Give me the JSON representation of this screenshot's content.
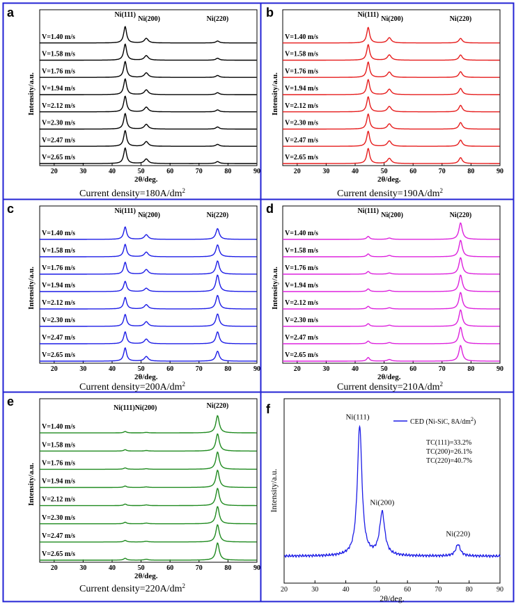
{
  "figure": {
    "border_color": "#2323d4"
  },
  "common": {
    "x_ticks": [
      20,
      30,
      40,
      50,
      60,
      70,
      80,
      90
    ],
    "x_range": [
      15,
      90
    ],
    "xlabel": "2θ/deg.",
    "ylabel": "Intensity/a.u.",
    "speeds": [
      "V=1.40 m/s",
      "V=1.58 m/s",
      "V=1.76 m/s",
      "V=1.94 m/s",
      "V=2.12 m/s",
      "V=2.30 m/s",
      "V=2.47 m/s",
      "V=2.65 m/s"
    ],
    "peak_positions": [
      44.5,
      51.8,
      76.4
    ]
  },
  "chart_data": [
    {
      "type": "line",
      "panel": "a",
      "color": "#000000",
      "title": "Current density=180A/dm²",
      "caption_prefix": "Current density=180A/dm",
      "caption_sup": "2",
      "peak_labels": [
        "Ni(111)",
        "Ni(200)",
        "Ni(220)"
      ],
      "series": [
        {
          "name": "V=1.40 m/s",
          "peak_heights": [
            1.0,
            0.28,
            0.12
          ]
        },
        {
          "name": "V=1.58 m/s",
          "peak_heights": [
            0.98,
            0.28,
            0.12
          ]
        },
        {
          "name": "V=1.76 m/s",
          "peak_heights": [
            0.97,
            0.28,
            0.12
          ]
        },
        {
          "name": "V=1.94 m/s",
          "peak_heights": [
            0.96,
            0.29,
            0.12
          ]
        },
        {
          "name": "V=2.12 m/s",
          "peak_heights": [
            0.96,
            0.29,
            0.12
          ]
        },
        {
          "name": "V=2.30 m/s",
          "peak_heights": [
            0.95,
            0.29,
            0.13
          ]
        },
        {
          "name": "V=2.47 m/s",
          "peak_heights": [
            0.96,
            0.29,
            0.12
          ]
        },
        {
          "name": "V=2.65 m/s",
          "peak_heights": [
            0.95,
            0.28,
            0.12
          ]
        }
      ]
    },
    {
      "type": "line",
      "panel": "b",
      "color": "#e61c1c",
      "title": "Current density=190A/dm²",
      "caption_prefix": "Current density=190A/dm",
      "caption_sup": "2",
      "peak_labels": [
        "Ni(111)",
        "Ni(200)",
        "Ni(220)"
      ],
      "series": [
        {
          "name": "V=1.40 m/s",
          "peak_heights": [
            0.95,
            0.32,
            0.28
          ]
        },
        {
          "name": "V=1.58 m/s",
          "peak_heights": [
            0.95,
            0.32,
            0.32
          ]
        },
        {
          "name": "V=1.76 m/s",
          "peak_heights": [
            0.94,
            0.33,
            0.35
          ]
        },
        {
          "name": "V=1.94 m/s",
          "peak_heights": [
            0.92,
            0.33,
            0.38
          ]
        },
        {
          "name": "V=2.12 m/s",
          "peak_heights": [
            0.92,
            0.33,
            0.4
          ]
        },
        {
          "name": "V=2.30 m/s",
          "peak_heights": [
            0.92,
            0.32,
            0.4
          ]
        },
        {
          "name": "V=2.47 m/s",
          "peak_heights": [
            0.92,
            0.33,
            0.38
          ]
        },
        {
          "name": "V=2.65 m/s",
          "peak_heights": [
            0.92,
            0.32,
            0.36
          ]
        }
      ]
    },
    {
      "type": "line",
      "panel": "c",
      "color": "#1c1ce6",
      "title": "Current density=200A/dm²",
      "caption_prefix": "Current density=200A/dm",
      "caption_sup": "2",
      "peak_labels": [
        "Ni(111)",
        "Ni(200)",
        "Ni(220)"
      ],
      "series": [
        {
          "name": "V=1.40 m/s",
          "peak_heights": [
            0.75,
            0.28,
            0.65
          ]
        },
        {
          "name": "V=1.58 m/s",
          "peak_heights": [
            0.75,
            0.28,
            0.72
          ]
        },
        {
          "name": "V=1.76 m/s",
          "peak_heights": [
            0.72,
            0.28,
            0.8
          ]
        },
        {
          "name": "V=1.94 m/s",
          "peak_heights": [
            0.62,
            0.2,
            1.0
          ]
        },
        {
          "name": "V=2.12 m/s",
          "peak_heights": [
            0.7,
            0.26,
            0.82
          ]
        },
        {
          "name": "V=2.30 m/s",
          "peak_heights": [
            0.72,
            0.28,
            0.75
          ]
        },
        {
          "name": "V=2.47 m/s",
          "peak_heights": [
            0.72,
            0.28,
            0.72
          ]
        },
        {
          "name": "V=2.65 m/s",
          "peak_heights": [
            0.8,
            0.28,
            0.6
          ]
        }
      ]
    },
    {
      "type": "line",
      "panel": "d",
      "color": "#dd22dd",
      "title": "Current density=210A/dm²",
      "caption_prefix": "Current density=210A/dm",
      "caption_sup": "2",
      "peak_labels": [
        "Ni(111)",
        "Ni(200)",
        "Ni(220)"
      ],
      "series": [
        {
          "name": "V=1.40 m/s",
          "peak_heights": [
            0.18,
            0.08,
            1.0
          ]
        },
        {
          "name": "V=1.58 m/s",
          "peak_heights": [
            0.17,
            0.08,
            1.0
          ]
        },
        {
          "name": "V=1.76 m/s",
          "peak_heights": [
            0.16,
            0.07,
            1.0
          ]
        },
        {
          "name": "V=1.94 m/s",
          "peak_heights": [
            0.16,
            0.07,
            1.0
          ]
        },
        {
          "name": "V=2.12 m/s",
          "peak_heights": [
            0.16,
            0.07,
            1.0
          ]
        },
        {
          "name": "V=2.30 m/s",
          "peak_heights": [
            0.16,
            0.07,
            1.0
          ]
        },
        {
          "name": "V=2.47 m/s",
          "peak_heights": [
            0.16,
            0.07,
            1.0
          ]
        },
        {
          "name": "V=2.65 m/s",
          "peak_heights": [
            0.22,
            0.1,
            0.95
          ]
        }
      ]
    },
    {
      "type": "line",
      "panel": "e",
      "color": "#1f8a1f",
      "title": "Current density=220A/dm²",
      "caption_prefix": "Current density=220A/dm",
      "caption_sup": "2",
      "peak_labels": [
        "Ni(111)Ni(200)",
        "",
        "Ni(220)"
      ],
      "series": [
        {
          "name": "V=1.40 m/s",
          "peak_heights": [
            0.08,
            0.03,
            1.0
          ]
        },
        {
          "name": "V=1.58 m/s",
          "peak_heights": [
            0.08,
            0.03,
            1.0
          ]
        },
        {
          "name": "V=1.76 m/s",
          "peak_heights": [
            0.08,
            0.03,
            1.0
          ]
        },
        {
          "name": "V=1.94 m/s",
          "peak_heights": [
            0.08,
            0.03,
            1.0
          ]
        },
        {
          "name": "V=2.12 m/s",
          "peak_heights": [
            0.09,
            0.04,
            1.0
          ]
        },
        {
          "name": "V=2.30 m/s",
          "peak_heights": [
            0.09,
            0.04,
            1.0
          ]
        },
        {
          "name": "V=2.47 m/s",
          "peak_heights": [
            0.09,
            0.04,
            1.0
          ]
        },
        {
          "name": "V=2.65 m/s",
          "peak_heights": [
            0.11,
            0.05,
            1.0
          ]
        }
      ]
    },
    {
      "type": "line",
      "panel": "f",
      "color": "#1c1ce6",
      "xlabel": "2θ/deg.",
      "ylabel": "Intensity/a.u.",
      "x_range": [
        20,
        90
      ],
      "x_ticks": [
        20,
        30,
        40,
        50,
        60,
        70,
        80,
        90
      ],
      "legend_text": "CED (Ni-SiC, 8A/dm",
      "legend_sup": "2",
      "legend_close": ")",
      "peaks": [
        {
          "label": "Ni(111)",
          "x": 44.5,
          "height": 1.0
        },
        {
          "label": "Ni(200)",
          "x": 51.8,
          "height": 0.33
        },
        {
          "label": "Ni(220)",
          "x": 76.4,
          "height": 0.09
        }
      ],
      "texture_coefficients": [
        "TC(111)=33.2%",
        "TC(200)=26.1%",
        "TC(220)=40.7%"
      ]
    }
  ]
}
